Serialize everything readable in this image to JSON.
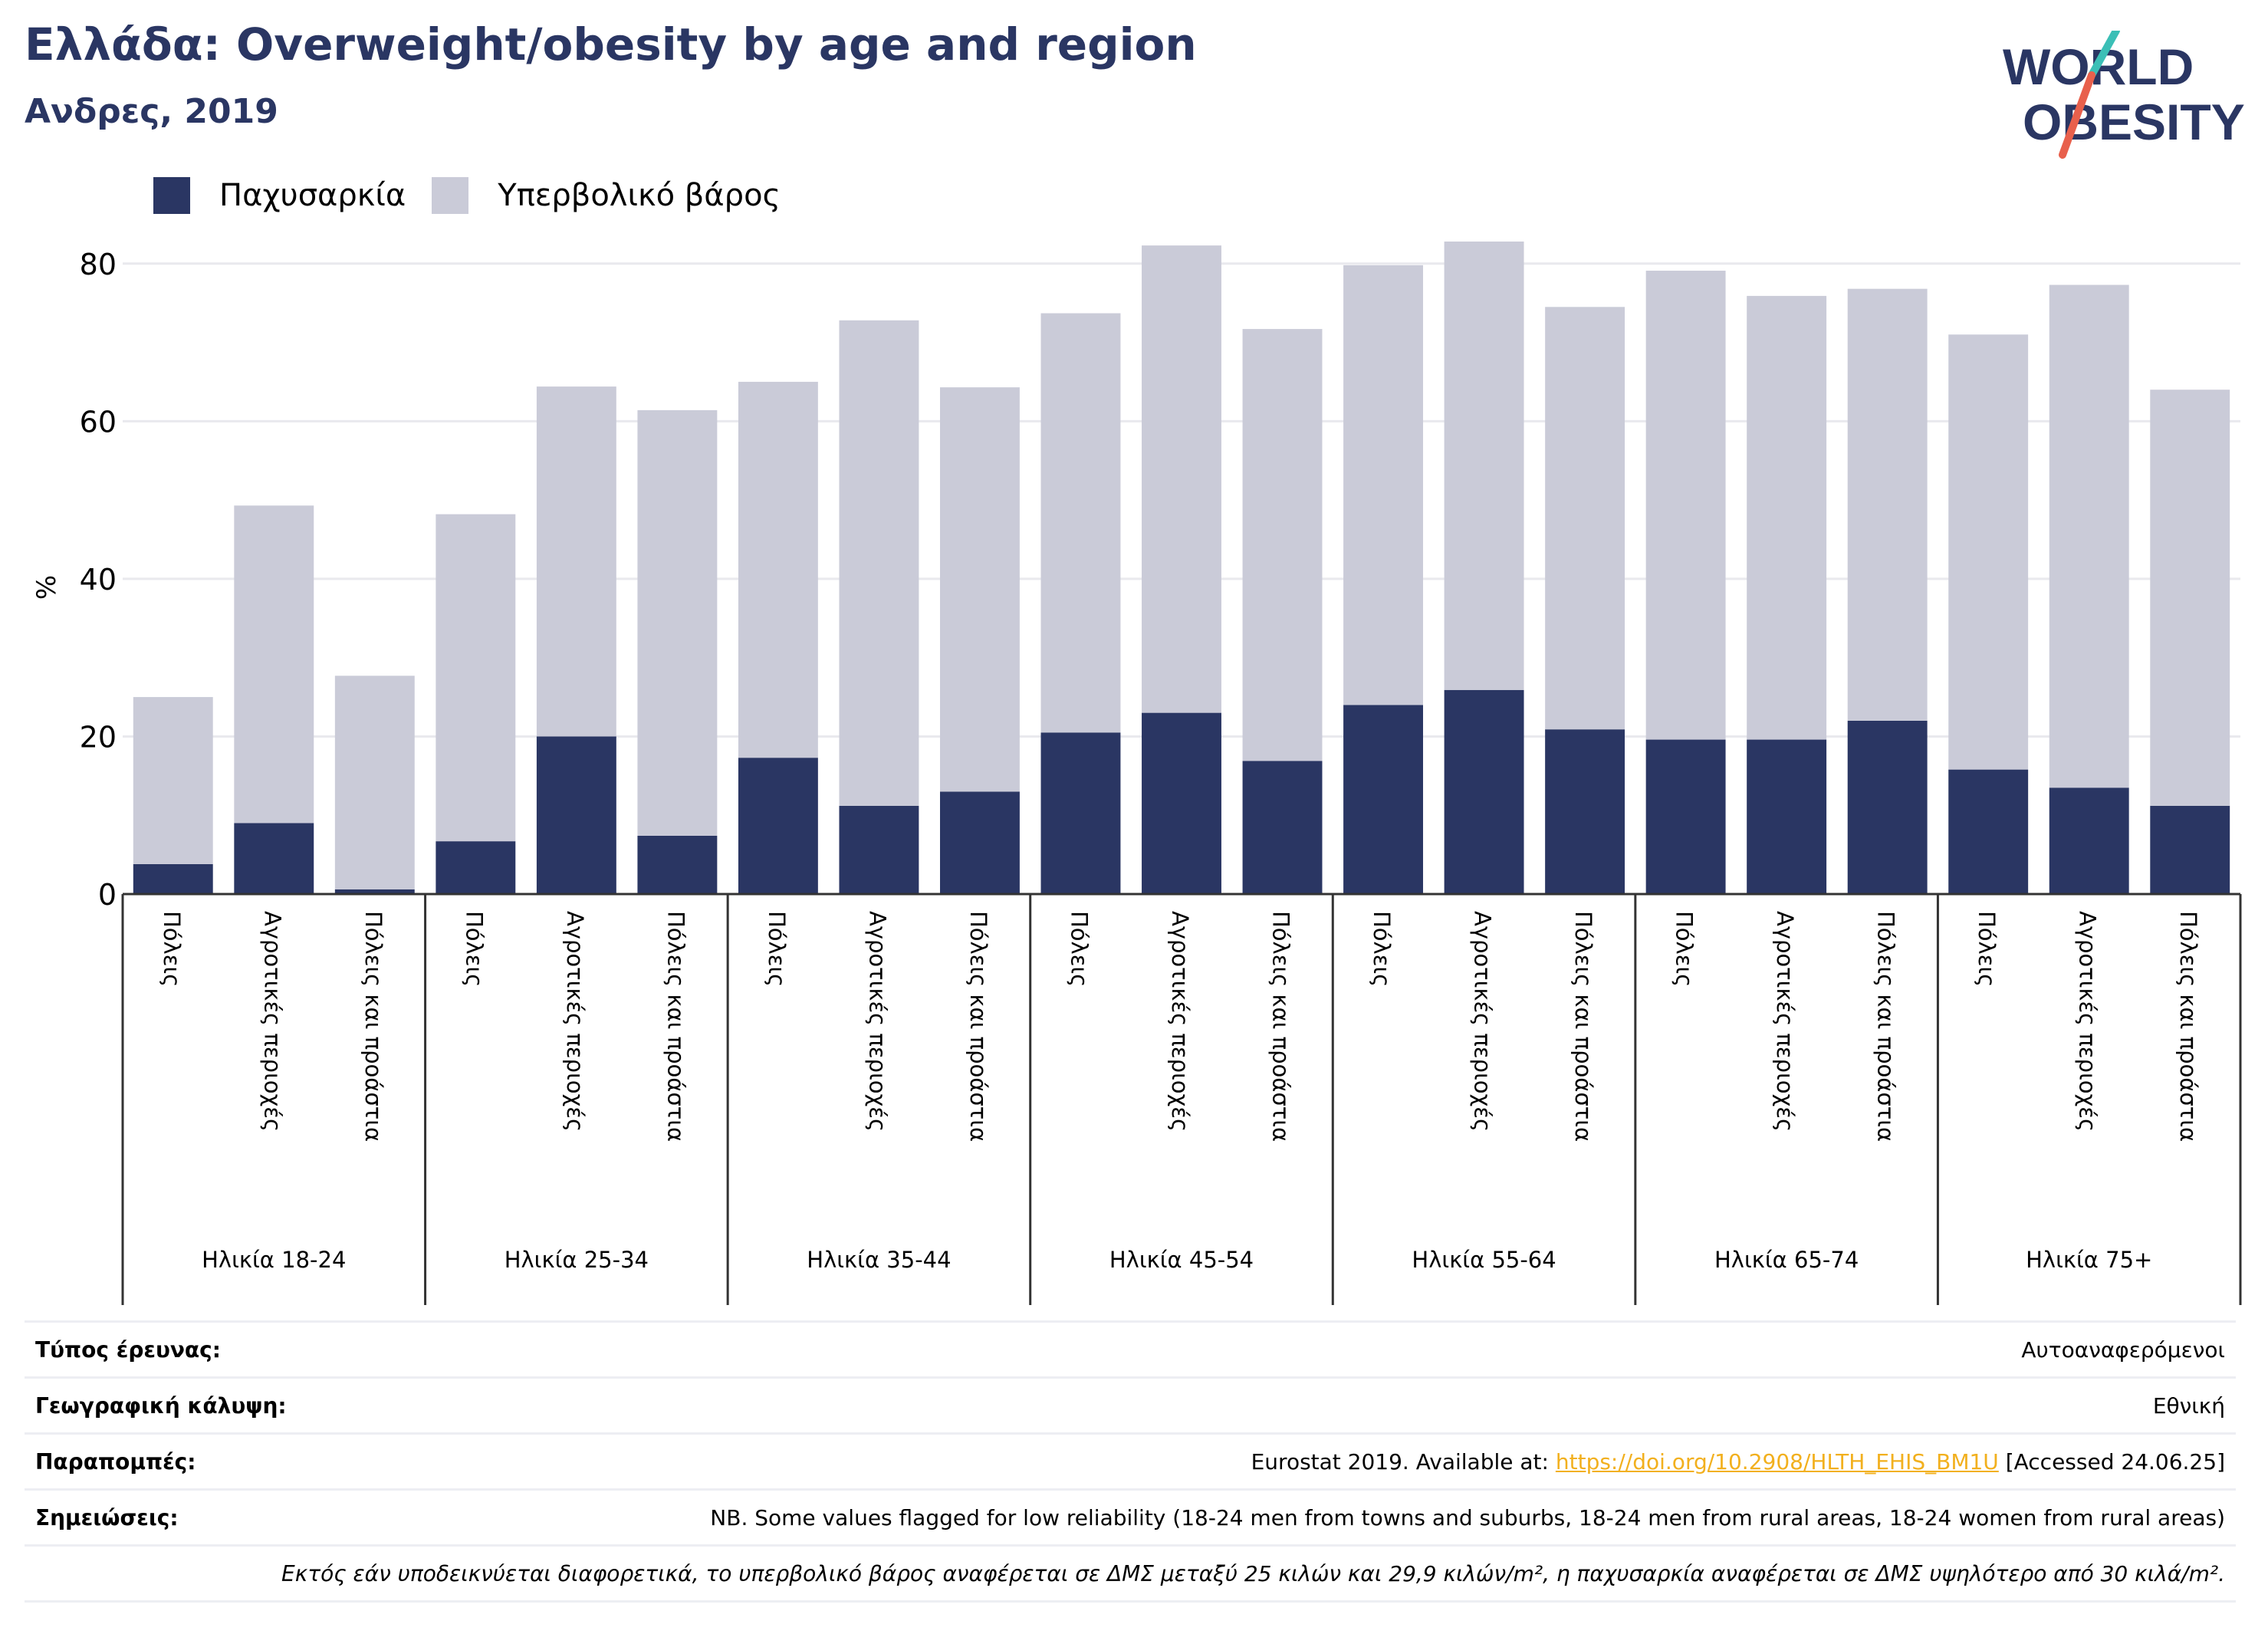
{
  "header": {
    "title": "Ελλάδα: Overweight/obesity by age and region",
    "subtitle": "Ανδρες, 2019"
  },
  "logo": {
    "line1": "WORLD",
    "line2": "OBESITY"
  },
  "colors": {
    "obesity": "#2a3663",
    "overweight": "#cacbd8",
    "title": "#2a3663",
    "link": "#f2b01e",
    "logo_slash_teal": "#3bbfb6",
    "logo_slash_red": "#e8604c"
  },
  "chart_data": {
    "type": "bar",
    "stacked": true,
    "ylabel": "%",
    "ylim": [
      0,
      90
    ],
    "yticks": [
      0,
      20,
      40,
      60,
      80
    ],
    "grid": true,
    "legend": "top-left",
    "series": [
      {
        "name": "Παχυσαρκία",
        "color": "#2a3663",
        "values": [
          3.8,
          9.0,
          0.6,
          6.7,
          20.0,
          7.4,
          17.3,
          11.2,
          13.0,
          20.5,
          23.0,
          16.9,
          24.0,
          25.9,
          20.9,
          19.6,
          19.6,
          22.0,
          15.8,
          13.5,
          11.2
        ]
      },
      {
        "name": "Υπερβολικό βάρος",
        "color": "#cacbd8",
        "values": [
          21.2,
          40.3,
          27.1,
          41.5,
          44.4,
          54.0,
          47.7,
          61.6,
          51.3,
          53.2,
          59.3,
          54.8,
          55.8,
          56.9,
          53.6,
          59.5,
          56.3,
          54.8,
          55.2,
          63.8,
          52.8
        ]
      }
    ],
    "groups": [
      {
        "label": "Ηλικία 18-24",
        "categories": [
          "Πόλεις",
          "Αγροτικές περιοχές",
          "Πόλεις και προάστια"
        ]
      },
      {
        "label": "Ηλικία 25-34",
        "categories": [
          "Πόλεις",
          "Αγροτικές περιοχές",
          "Πόλεις και προάστια"
        ]
      },
      {
        "label": "Ηλικία 35-44",
        "categories": [
          "Πόλεις",
          "Αγροτικές περιοχές",
          "Πόλεις και προάστια"
        ]
      },
      {
        "label": "Ηλικία 45-54",
        "categories": [
          "Πόλεις",
          "Αγροτικές περιοχές",
          "Πόλεις και προάστια"
        ]
      },
      {
        "label": "Ηλικία 55-64",
        "categories": [
          "Πόλεις",
          "Αγροτικές περιοχές",
          "Πόλεις και προάστια"
        ]
      },
      {
        "label": "Ηλικία 65-74",
        "categories": [
          "Πόλεις",
          "Αγροτικές περιοχές",
          "Πόλεις και προάστια"
        ]
      },
      {
        "label": "Ηλικία 75+",
        "categories": [
          "Πόλεις",
          "Αγροτικές περιοχές",
          "Πόλεις και προάστια"
        ]
      }
    ]
  },
  "info": {
    "survey_type_label": "Τύπος έρευνας:",
    "survey_type_value": "Αυτοαναφερόμενοι",
    "coverage_label": "Γεωγραφική κάλυψη:",
    "coverage_value": "Εθνική",
    "references_label": "Παραπομπές:",
    "references_prefix": "Eurostat 2019. Available at: ",
    "references_link": "https://doi.org/10.2908/HLTH_EHIS_BM1U",
    "references_suffix": " [Accessed 24.06.25]",
    "notes_label": "Σημειώσεις:",
    "notes_value": "NB. Some values flagged for low reliability (18-24 men from towns and suburbs, 18-24 men from rural areas, 18-24 women from rural areas)",
    "footnote": "Εκτός εάν υποδεικνύεται διαφορετικά, το υπερβολικό βάρος αναφέρεται σε ΔΜΣ μεταξύ 25 κιλών και 29,9 κιλών/m², η παχυσαρκία αναφέρεται σε ΔΜΣ υψηλότερο από 30 κιλά/m²."
  }
}
